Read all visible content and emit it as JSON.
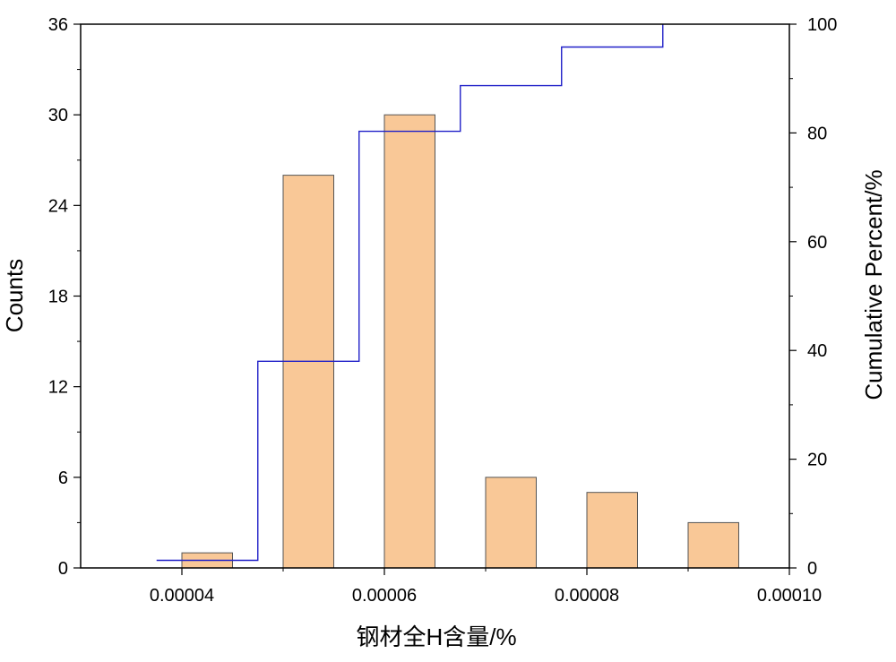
{
  "chart_data": {
    "type": "bar",
    "xlabel": "钢材全H含量/%",
    "ylabel_left": "Counts",
    "ylabel_right": "Cumulative Percent/%",
    "xlim": [
      3e-05,
      0.0001
    ],
    "ylim_left": [
      0,
      36
    ],
    "ylim_right": [
      0,
      100
    ],
    "x_ticks": [
      {
        "value": 4e-05,
        "label": "0.00004"
      },
      {
        "value": 6e-05,
        "label": "0.00006"
      },
      {
        "value": 8e-05,
        "label": "0.00008"
      },
      {
        "value": 0.0001,
        "label": "0.00010"
      }
    ],
    "y_ticks_left": [
      {
        "value": 0,
        "label": "0"
      },
      {
        "value": 6,
        "label": "6"
      },
      {
        "value": 12,
        "label": "12"
      },
      {
        "value": 18,
        "label": "18"
      },
      {
        "value": 24,
        "label": "24"
      },
      {
        "value": 30,
        "label": "30"
      },
      {
        "value": 36,
        "label": "36"
      }
    ],
    "y_ticks_right": [
      {
        "value": 0,
        "label": "0"
      },
      {
        "value": 20,
        "label": "20"
      },
      {
        "value": 40,
        "label": "40"
      },
      {
        "value": 60,
        "label": "60"
      },
      {
        "value": 80,
        "label": "80"
      },
      {
        "value": 100,
        "label": "100"
      }
    ],
    "bars": [
      {
        "center": 4.25e-05,
        "count": 1
      },
      {
        "center": 5.25e-05,
        "count": 26
      },
      {
        "center": 6.25e-05,
        "count": 30
      },
      {
        "center": 7.25e-05,
        "count": 6
      },
      {
        "center": 8.25e-05,
        "count": 5
      },
      {
        "center": 9.25e-05,
        "count": 3
      }
    ],
    "bar_width": 5e-06,
    "cumulative_step": [
      {
        "x_start": 3.75e-05,
        "x_end": 4.75e-05,
        "percent": 1.4
      },
      {
        "x_start": 4.75e-05,
        "x_end": 5.75e-05,
        "percent": 38.0
      },
      {
        "x_start": 5.75e-05,
        "x_end": 6.75e-05,
        "percent": 80.3
      },
      {
        "x_start": 6.75e-05,
        "x_end": 7.75e-05,
        "percent": 88.7
      },
      {
        "x_start": 7.75e-05,
        "x_end": 8.75e-05,
        "percent": 95.8
      },
      {
        "x_start": 8.75e-05,
        "x_end": 8.75e-05,
        "percent": 100
      }
    ],
    "colors": {
      "bar_fill": "#f9c897",
      "bar_stroke": "#555555",
      "line": "#2020c8",
      "axis": "#000000"
    },
    "grid": false
  }
}
